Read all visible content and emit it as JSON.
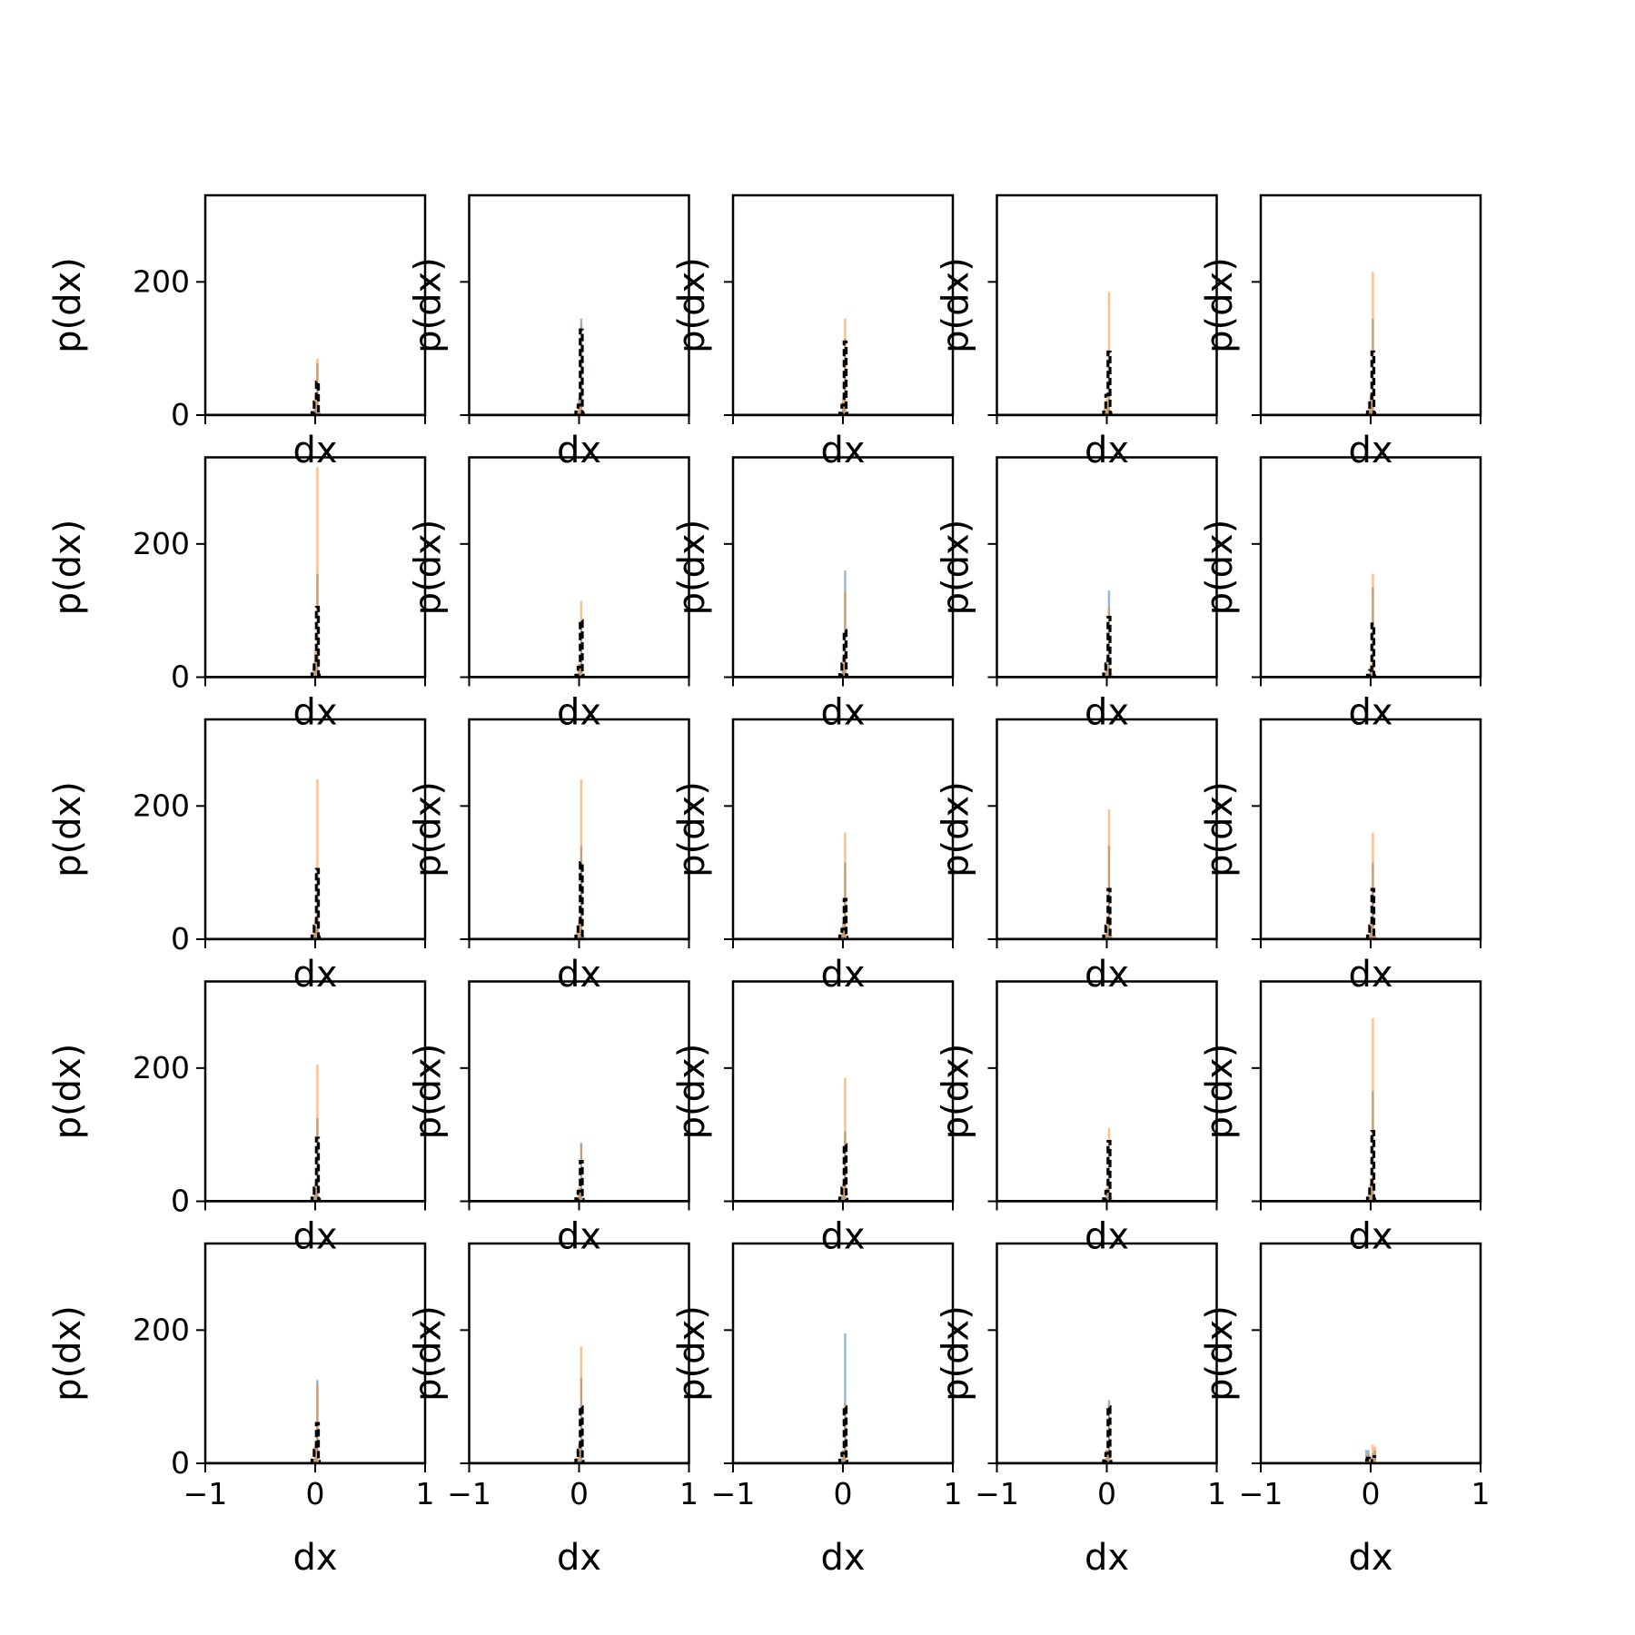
{
  "colors": {
    "series_a": "#1f77b4",
    "series_b": "#ff7f0e",
    "reference": "#000000",
    "frame": "#000000",
    "background": "#ffffff"
  },
  "chart_data": {
    "type": "bar",
    "layout": "grid",
    "rows": 5,
    "cols": 5,
    "xlim": [
      -1,
      1
    ],
    "ylim": [
      0,
      330
    ],
    "xticks": [
      -1,
      0,
      1
    ],
    "xtick_labels": [
      "−1",
      "0",
      "1"
    ],
    "yticks": [
      0,
      200
    ],
    "ytick_labels": [
      "0",
      "200"
    ],
    "xlabel": "dx",
    "ylabel": "p(dx)",
    "grid": false,
    "legend": "none",
    "bin_edges": [
      -0.05,
      -0.03,
      -0.01,
      0.01,
      0.03,
      0.05
    ],
    "panels": [
      {
        "a": [
          0,
          5,
          20,
          78,
          3
        ],
        "b": [
          1,
          3,
          30,
          85,
          5
        ],
        "ref": [
          0,
          4,
          20,
          50,
          2
        ]
      },
      {
        "a": [
          0,
          5,
          25,
          145,
          5
        ],
        "b": [
          0,
          4,
          20,
          135,
          5
        ],
        "ref": [
          0,
          5,
          15,
          128,
          3
        ]
      },
      {
        "a": [
          0,
          4,
          20,
          115,
          5
        ],
        "b": [
          1,
          5,
          25,
          145,
          3
        ],
        "ref": [
          0,
          3,
          15,
          110,
          3
        ]
      },
      {
        "a": [
          0,
          5,
          20,
          95,
          5
        ],
        "b": [
          0,
          10,
          25,
          185,
          5
        ],
        "ref": [
          0,
          5,
          30,
          95,
          3
        ]
      },
      {
        "a": [
          0,
          5,
          30,
          145,
          4
        ],
        "b": [
          1,
          10,
          30,
          215,
          5
        ],
        "ref": [
          0,
          5,
          25,
          95,
          3
        ]
      },
      {
        "a": [
          0,
          5,
          35,
          155,
          5
        ],
        "b": [
          0,
          10,
          40,
          315,
          5
        ],
        "ref": [
          0,
          5,
          25,
          105,
          3
        ]
      },
      {
        "a": [
          0,
          3,
          20,
          80,
          4
        ],
        "b": [
          0,
          5,
          20,
          115,
          3
        ],
        "ref": [
          0,
          3,
          15,
          85,
          3
        ]
      },
      {
        "a": [
          0,
          4,
          20,
          160,
          5
        ],
        "b": [
          0,
          5,
          30,
          130,
          3
        ],
        "ref": [
          0,
          4,
          20,
          70,
          3
        ]
      },
      {
        "a": [
          0,
          5,
          25,
          130,
          5
        ],
        "b": [
          0,
          5,
          15,
          105,
          3
        ],
        "ref": [
          0,
          5,
          20,
          90,
          3
        ]
      },
      {
        "a": [
          0,
          3,
          15,
          135,
          4
        ],
        "b": [
          0,
          4,
          20,
          155,
          3
        ],
        "ref": [
          0,
          3,
          10,
          80,
          2
        ]
      },
      {
        "a": [
          0,
          5,
          20,
          105,
          5
        ],
        "b": [
          0,
          10,
          30,
          240,
          5
        ],
        "ref": [
          0,
          5,
          20,
          105,
          3
        ]
      },
      {
        "a": [
          0,
          5,
          25,
          140,
          5
        ],
        "b": [
          0,
          10,
          30,
          240,
          5
        ],
        "ref": [
          0,
          5,
          25,
          115,
          3
        ]
      },
      {
        "a": [
          0,
          5,
          20,
          115,
          5
        ],
        "b": [
          0,
          8,
          25,
          160,
          5
        ],
        "ref": [
          0,
          5,
          15,
          60,
          3
        ]
      },
      {
        "a": [
          0,
          5,
          20,
          140,
          5
        ],
        "b": [
          0,
          8,
          30,
          195,
          5
        ],
        "ref": [
          0,
          5,
          20,
          75,
          3
        ]
      },
      {
        "a": [
          0,
          5,
          20,
          115,
          5
        ],
        "b": [
          0,
          8,
          25,
          160,
          5
        ],
        "ref": [
          0,
          5,
          20,
          75,
          3
        ]
      },
      {
        "a": [
          0,
          5,
          25,
          125,
          5
        ],
        "b": [
          0,
          8,
          25,
          205,
          5
        ],
        "ref": [
          0,
          5,
          20,
          95,
          3
        ]
      },
      {
        "a": [
          0,
          5,
          20,
          88,
          5
        ],
        "b": [
          0,
          5,
          20,
          85,
          5
        ],
        "ref": [
          0,
          4,
          15,
          60,
          3
        ]
      },
      {
        "a": [
          0,
          5,
          20,
          105,
          5
        ],
        "b": [
          0,
          8,
          25,
          185,
          5
        ],
        "ref": [
          0,
          5,
          20,
          85,
          3
        ]
      },
      {
        "a": [
          0,
          5,
          20,
          90,
          5
        ],
        "b": [
          0,
          5,
          20,
          110,
          5
        ],
        "ref": [
          0,
          4,
          15,
          90,
          3
        ]
      },
      {
        "a": [
          0,
          5,
          25,
          165,
          5
        ],
        "b": [
          0,
          10,
          35,
          275,
          5
        ],
        "ref": [
          0,
          5,
          25,
          105,
          3
        ]
      },
      {
        "a": [
          0,
          5,
          25,
          125,
          5
        ],
        "b": [
          0,
          5,
          30,
          120,
          5
        ],
        "ref": [
          0,
          5,
          20,
          60,
          3
        ]
      },
      {
        "a": [
          0,
          5,
          25,
          128,
          5
        ],
        "b": [
          0,
          8,
          30,
          175,
          5
        ],
        "ref": [
          0,
          5,
          20,
          85,
          3
        ]
      },
      {
        "a": [
          0,
          5,
          20,
          195,
          5
        ],
        "b": [
          0,
          5,
          20,
          90,
          5
        ],
        "ref": [
          0,
          5,
          15,
          85,
          3
        ]
      },
      {
        "a": [
          0,
          5,
          20,
          95,
          5
        ],
        "b": [
          0,
          5,
          20,
          88,
          5
        ],
        "ref": [
          0,
          4,
          15,
          85,
          3
        ]
      },
      {
        "a": [
          20,
          20,
          0,
          15,
          20
        ],
        "b": [
          10,
          15,
          0,
          28,
          25
        ],
        "ref": [
          5,
          8,
          0,
          8,
          10
        ]
      }
    ]
  }
}
